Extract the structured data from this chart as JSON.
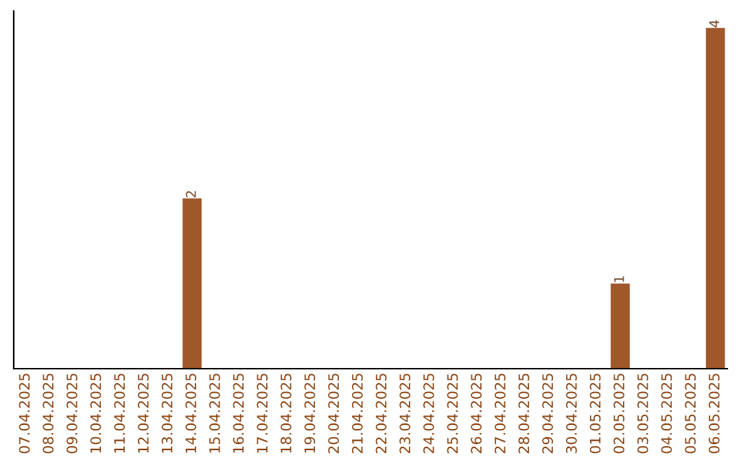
{
  "chart_data": {
    "type": "bar",
    "categories": [
      "07.04.2025",
      "08.04.2025",
      "09.04.2025",
      "10.04.2025",
      "11.04.2025",
      "12.04.2025",
      "13.04.2025",
      "14.04.2025",
      "15.04.2025",
      "16.04.2025",
      "17.04.2025",
      "18.04.2025",
      "19.04.2025",
      "20.04.2025",
      "21.04.2025",
      "22.04.2025",
      "23.04.2025",
      "24.04.2025",
      "25.04.2025",
      "26.04.2025",
      "27.04.2025",
      "28.04.2025",
      "29.04.2025",
      "30.04.2025",
      "01.05.2025",
      "02.05.2025",
      "03.05.2025",
      "04.05.2025",
      "05.05.2025",
      "06.05.2025"
    ],
    "values": [
      0,
      0,
      0,
      0,
      0,
      0,
      0,
      2,
      0,
      0,
      0,
      0,
      0,
      0,
      0,
      0,
      0,
      0,
      0,
      0,
      0,
      0,
      0,
      0,
      0,
      1,
      0,
      0,
      0,
      4
    ],
    "value_labels": [
      null,
      null,
      null,
      null,
      null,
      null,
      null,
      "2",
      null,
      null,
      null,
      null,
      null,
      null,
      null,
      null,
      null,
      null,
      null,
      null,
      null,
      null,
      null,
      null,
      null,
      "1",
      null,
      null,
      null,
      "4"
    ],
    "color": "#a0572a",
    "ylim": [
      0,
      4.2
    ],
    "tick_labels": "x",
    "grid": false,
    "legend": false
  }
}
